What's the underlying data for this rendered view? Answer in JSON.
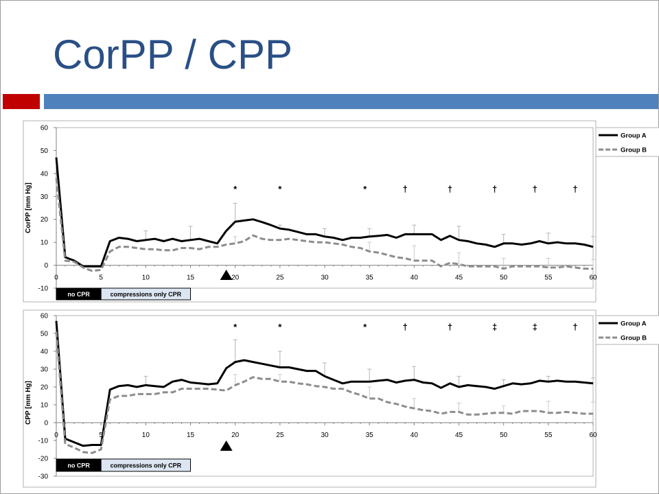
{
  "slide": {
    "title": "CorPP / CPP",
    "colors": {
      "title": "#2a4f86",
      "accent_red": "#c00000",
      "accent_blue": "#4f81bd"
    }
  },
  "chart_data": [
    {
      "type": "line",
      "ylabel": "CorPP [mm Hg]",
      "xlim": [
        0,
        60
      ],
      "ylim": [
        -10,
        60
      ],
      "xticks": [
        0,
        5,
        10,
        15,
        20,
        25,
        30,
        35,
        40,
        45,
        50,
        55,
        60
      ],
      "yticks": [
        -10,
        0,
        10,
        20,
        30,
        40,
        50,
        60
      ],
      "grid": false,
      "legend_position": "top-right",
      "series": [
        {
          "name": "Group A",
          "style": "solid",
          "color": "#000000",
          "x": [
            0,
            1,
            2,
            3,
            4,
            5,
            6,
            7,
            8,
            9,
            10,
            11,
            12,
            13,
            14,
            15,
            16,
            17,
            18,
            19,
            20,
            21,
            22,
            23,
            24,
            25,
            26,
            27,
            28,
            29,
            30,
            31,
            32,
            33,
            34,
            35,
            36,
            37,
            38,
            39,
            40,
            41,
            42,
            43,
            44,
            45,
            46,
            47,
            48,
            49,
            50,
            51,
            52,
            53,
            54,
            55,
            56,
            57,
            58,
            59,
            60
          ],
          "y": [
            47,
            3.5,
            2,
            -0.5,
            -0.5,
            -0.5,
            10.5,
            12,
            11.5,
            10.5,
            11,
            11.5,
            10.5,
            11.5,
            10.5,
            11,
            11.5,
            10.5,
            9.5,
            15,
            19,
            19.5,
            20,
            18.8,
            17.5,
            16,
            15.5,
            14.5,
            13.5,
            13.5,
            12.5,
            12,
            11,
            12,
            12,
            12.5,
            12.8,
            13.2,
            12,
            13.5,
            13.5,
            13.5,
            13.5,
            11,
            12.8,
            11,
            10.5,
            9.5,
            9,
            8,
            9.5,
            9.5,
            9,
            9.5,
            10.5,
            9.5,
            10,
            9.5,
            9.5,
            9,
            8
          ]
        },
        {
          "name": "Group B",
          "style": "dashed",
          "color": "#8c8c8c",
          "x": [
            0,
            1,
            2,
            3,
            4,
            5,
            6,
            7,
            8,
            9,
            10,
            11,
            12,
            13,
            14,
            15,
            16,
            17,
            18,
            19,
            20,
            21,
            22,
            23,
            24,
            25,
            26,
            27,
            28,
            29,
            30,
            31,
            32,
            33,
            34,
            35,
            36,
            37,
            38,
            39,
            40,
            41,
            42,
            43,
            44,
            45,
            46,
            47,
            48,
            49,
            50,
            51,
            52,
            53,
            54,
            55,
            56,
            57,
            58,
            59,
            60
          ],
          "y": [
            38,
            2,
            1.5,
            -1,
            -2.5,
            -2,
            6,
            8,
            8,
            7.5,
            7,
            7,
            6.5,
            6.5,
            7.5,
            7.5,
            7,
            8,
            8,
            9,
            9.5,
            10.5,
            13,
            11.5,
            11,
            11,
            11.5,
            11,
            10.5,
            10,
            10,
            9.5,
            9,
            8,
            7.5,
            6,
            5.5,
            4.5,
            3.5,
            3,
            2,
            2,
            2,
            -0.5,
            1,
            0.5,
            -0.5,
            -0.5,
            -0.5,
            -0.5,
            -1.5,
            -0.5,
            -0.5,
            -0.5,
            -0.5,
            -1,
            -1,
            -0.5,
            -1,
            -1.5,
            -1.5
          ]
        }
      ],
      "error_bars": [
        {
          "x": 10,
          "top": 15
        },
        {
          "x": 15,
          "top": 17
        },
        {
          "x": 20,
          "top": 27
        },
        {
          "x": 25,
          "top": 17.5
        },
        {
          "x": 30,
          "top": 16
        },
        {
          "x": 35,
          "top": 16
        },
        {
          "x": 40,
          "top": 17.5
        },
        {
          "x": 45,
          "top": 17
        },
        {
          "x": 50,
          "top": 13.5
        },
        {
          "x": 55,
          "top": 14
        },
        {
          "x": 60,
          "top": 12.5
        },
        {
          "x": 20,
          "top": 12.5,
          "grey": true
        },
        {
          "x": 35,
          "top": 10,
          "grey": true
        },
        {
          "x": 40,
          "top": 8.5,
          "grey": true
        },
        {
          "x": 45,
          "top": 5.5,
          "grey": true
        },
        {
          "x": 50,
          "top": 3,
          "grey": true
        },
        {
          "x": 55,
          "top": 3,
          "grey": true
        },
        {
          "x": 60,
          "top": 2.5,
          "grey": true
        }
      ],
      "annotations": [
        {
          "x": 20,
          "symbol": "*"
        },
        {
          "x": 25,
          "symbol": "*"
        },
        {
          "x": 34.5,
          "symbol": "*"
        },
        {
          "x": 39,
          "symbol": "†"
        },
        {
          "x": 44,
          "symbol": "†"
        },
        {
          "x": 49,
          "symbol": "†"
        },
        {
          "x": 53.5,
          "symbol": "†"
        },
        {
          "x": 58,
          "symbol": "†"
        }
      ],
      "marker": {
        "x": 19,
        "symbol": "▲"
      },
      "phases": [
        {
          "label": "no CPR",
          "from": 0,
          "to": 5,
          "fill": "#000000",
          "text_color": "#ffffff"
        },
        {
          "label": "compressions only CPR",
          "from": 5,
          "to": 15,
          "fill": "#dce6f2",
          "text_color": "#000000"
        }
      ]
    },
    {
      "type": "line",
      "ylabel": "CPP [mm Hg]",
      "xlim": [
        0,
        60
      ],
      "ylim": [
        -30,
        60
      ],
      "xticks": [
        0,
        5,
        10,
        15,
        20,
        25,
        30,
        35,
        40,
        45,
        50,
        55,
        60
      ],
      "yticks": [
        -30,
        -20,
        -10,
        0,
        10,
        20,
        30,
        40,
        50,
        60
      ],
      "grid": false,
      "legend_position": "top-right",
      "series": [
        {
          "name": "Group A",
          "style": "solid",
          "color": "#000000",
          "x": [
            0,
            1,
            2,
            3,
            4,
            5,
            6,
            7,
            8,
            9,
            10,
            11,
            12,
            13,
            14,
            15,
            16,
            17,
            18,
            19,
            20,
            21,
            22,
            23,
            24,
            25,
            26,
            27,
            28,
            29,
            30,
            31,
            32,
            33,
            34,
            35,
            36,
            37,
            38,
            39,
            40,
            41,
            42,
            43,
            44,
            45,
            46,
            47,
            48,
            49,
            50,
            51,
            52,
            53,
            54,
            55,
            56,
            57,
            58,
            59,
            60
          ],
          "y": [
            57,
            -9,
            -11,
            -13,
            -12.5,
            -12.5,
            18.5,
            20.5,
            21,
            20,
            21,
            20.5,
            20,
            23,
            24,
            22.5,
            22,
            21.5,
            22,
            30.5,
            34,
            35,
            34,
            33,
            32,
            31,
            31,
            30,
            29,
            29,
            26,
            24,
            22,
            23,
            23,
            23,
            23.5,
            24,
            22.5,
            23.5,
            24,
            22.5,
            22,
            19.5,
            22,
            20,
            21,
            20.5,
            20,
            19,
            20.5,
            22,
            21.5,
            22,
            23.5,
            23,
            23.5,
            23,
            23,
            22.5,
            22
          ]
        },
        {
          "name": "Group B",
          "style": "dashed",
          "color": "#8c8c8c",
          "x": [
            0,
            1,
            2,
            3,
            4,
            5,
            6,
            7,
            8,
            9,
            10,
            11,
            12,
            13,
            14,
            15,
            16,
            17,
            18,
            19,
            20,
            21,
            22,
            23,
            24,
            25,
            26,
            27,
            28,
            29,
            30,
            31,
            32,
            33,
            34,
            35,
            36,
            37,
            38,
            39,
            40,
            41,
            42,
            43,
            44,
            45,
            46,
            47,
            48,
            49,
            50,
            51,
            52,
            53,
            54,
            55,
            56,
            57,
            58,
            59,
            60
          ],
          "y": [
            51,
            -12,
            -14,
            -16.5,
            -17,
            -15,
            13,
            15,
            15,
            16,
            16,
            16,
            17,
            17,
            19,
            19,
            19,
            19,
            18.5,
            18,
            21,
            23,
            25.5,
            24.5,
            24.5,
            23,
            23,
            22,
            21.5,
            20.5,
            20,
            19,
            19,
            17,
            15.5,
            13.5,
            13.5,
            11.5,
            10.5,
            9,
            8,
            7,
            6.5,
            5,
            6,
            6,
            4.5,
            4.5,
            5,
            5.5,
            5.5,
            5,
            6.5,
            6.5,
            6.5,
            5.5,
            5.5,
            6,
            5.5,
            5,
            5
          ]
        }
      ],
      "error_bars": [
        {
          "x": 10,
          "top": 26
        },
        {
          "x": 20,
          "top": 46.5
        },
        {
          "x": 25,
          "top": 40
        },
        {
          "x": 30,
          "top": 33.5
        },
        {
          "x": 35,
          "top": 30
        },
        {
          "x": 40,
          "top": 31.5
        },
        {
          "x": 45,
          "top": 26
        },
        {
          "x": 50,
          "top": 24
        },
        {
          "x": 55,
          "top": 26
        },
        {
          "x": 60,
          "top": 25
        },
        {
          "x": 20,
          "top": 27,
          "grey": true
        },
        {
          "x": 25,
          "top": 27,
          "grey": true
        },
        {
          "x": 35,
          "top": 20,
          "grey": true
        },
        {
          "x": 40,
          "top": 13.5,
          "grey": true
        },
        {
          "x": 45,
          "top": 11,
          "grey": true
        },
        {
          "x": 50,
          "top": 9.5,
          "grey": true
        },
        {
          "x": 55,
          "top": 12,
          "grey": true
        },
        {
          "x": 60,
          "top": 11.5,
          "grey": true
        }
      ],
      "annotations": [
        {
          "x": 20,
          "symbol": "*"
        },
        {
          "x": 25,
          "symbol": "*"
        },
        {
          "x": 34.5,
          "symbol": "*"
        },
        {
          "x": 39,
          "symbol": "†"
        },
        {
          "x": 44,
          "symbol": "†"
        },
        {
          "x": 49,
          "symbol": "‡"
        },
        {
          "x": 53.5,
          "symbol": "‡"
        },
        {
          "x": 58,
          "symbol": "†"
        }
      ],
      "marker": {
        "x": 19,
        "symbol": "▲"
      },
      "phases": [
        {
          "label": "no CPR",
          "from": 0,
          "to": 5,
          "fill": "#000000",
          "text_color": "#ffffff"
        },
        {
          "label": "compressions only CPR",
          "from": 5,
          "to": 15,
          "fill": "#dce6f2",
          "text_color": "#000000"
        }
      ]
    }
  ]
}
